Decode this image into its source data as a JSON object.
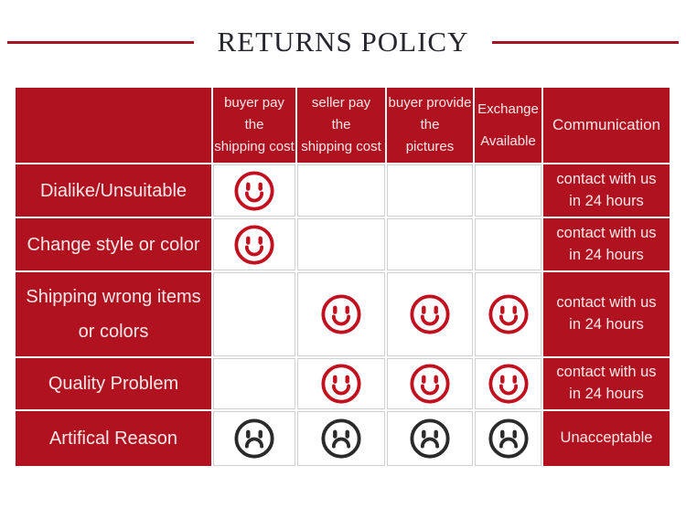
{
  "title": "RETURNS POLICY",
  "colors": {
    "table_red": "#b01220",
    "rule_red": "#a31523",
    "title_text": "#26262e",
    "smile_red": "#c2101f",
    "frown_black": "#2a2a2a",
    "grid_line": "#d0d0d0"
  },
  "table": {
    "corner_label": "",
    "columns": [
      {
        "id": "buyer-pay-shipping",
        "label": "buyer pay\nthe\nshipping cost"
      },
      {
        "id": "seller-pay-shipping",
        "label": "seller pay\nthe\nshipping cost"
      },
      {
        "id": "buyer-provide-pictures",
        "label": "buyer provide\nthe\npictures"
      },
      {
        "id": "exchange-available",
        "label": "Exchange\n\nAvailable"
      },
      {
        "id": "communication",
        "label": "Communication"
      }
    ],
    "rows": [
      {
        "label": "Dialike/Unsuitable",
        "cells": [
          "smile",
          "",
          "",
          ""
        ],
        "note": "contact with us\nin 24 hours"
      },
      {
        "label": "Change style or color",
        "cells": [
          "smile",
          "",
          "",
          ""
        ],
        "note": "contact with us\nin 24 hours"
      },
      {
        "label": "Shipping wrong items\nor colors",
        "cells": [
          "",
          "smile",
          "smile",
          "smile"
        ],
        "note": "contact with us\nin 24 hours"
      },
      {
        "label": "Quality Problem",
        "cells": [
          "",
          "smile",
          "smile",
          "smile"
        ],
        "note": "contact with us\nin 24 hours"
      },
      {
        "label": "Artifical Reason",
        "cells": [
          "frown",
          "frown",
          "frown",
          "frown"
        ],
        "note": "Unacceptable"
      }
    ]
  }
}
